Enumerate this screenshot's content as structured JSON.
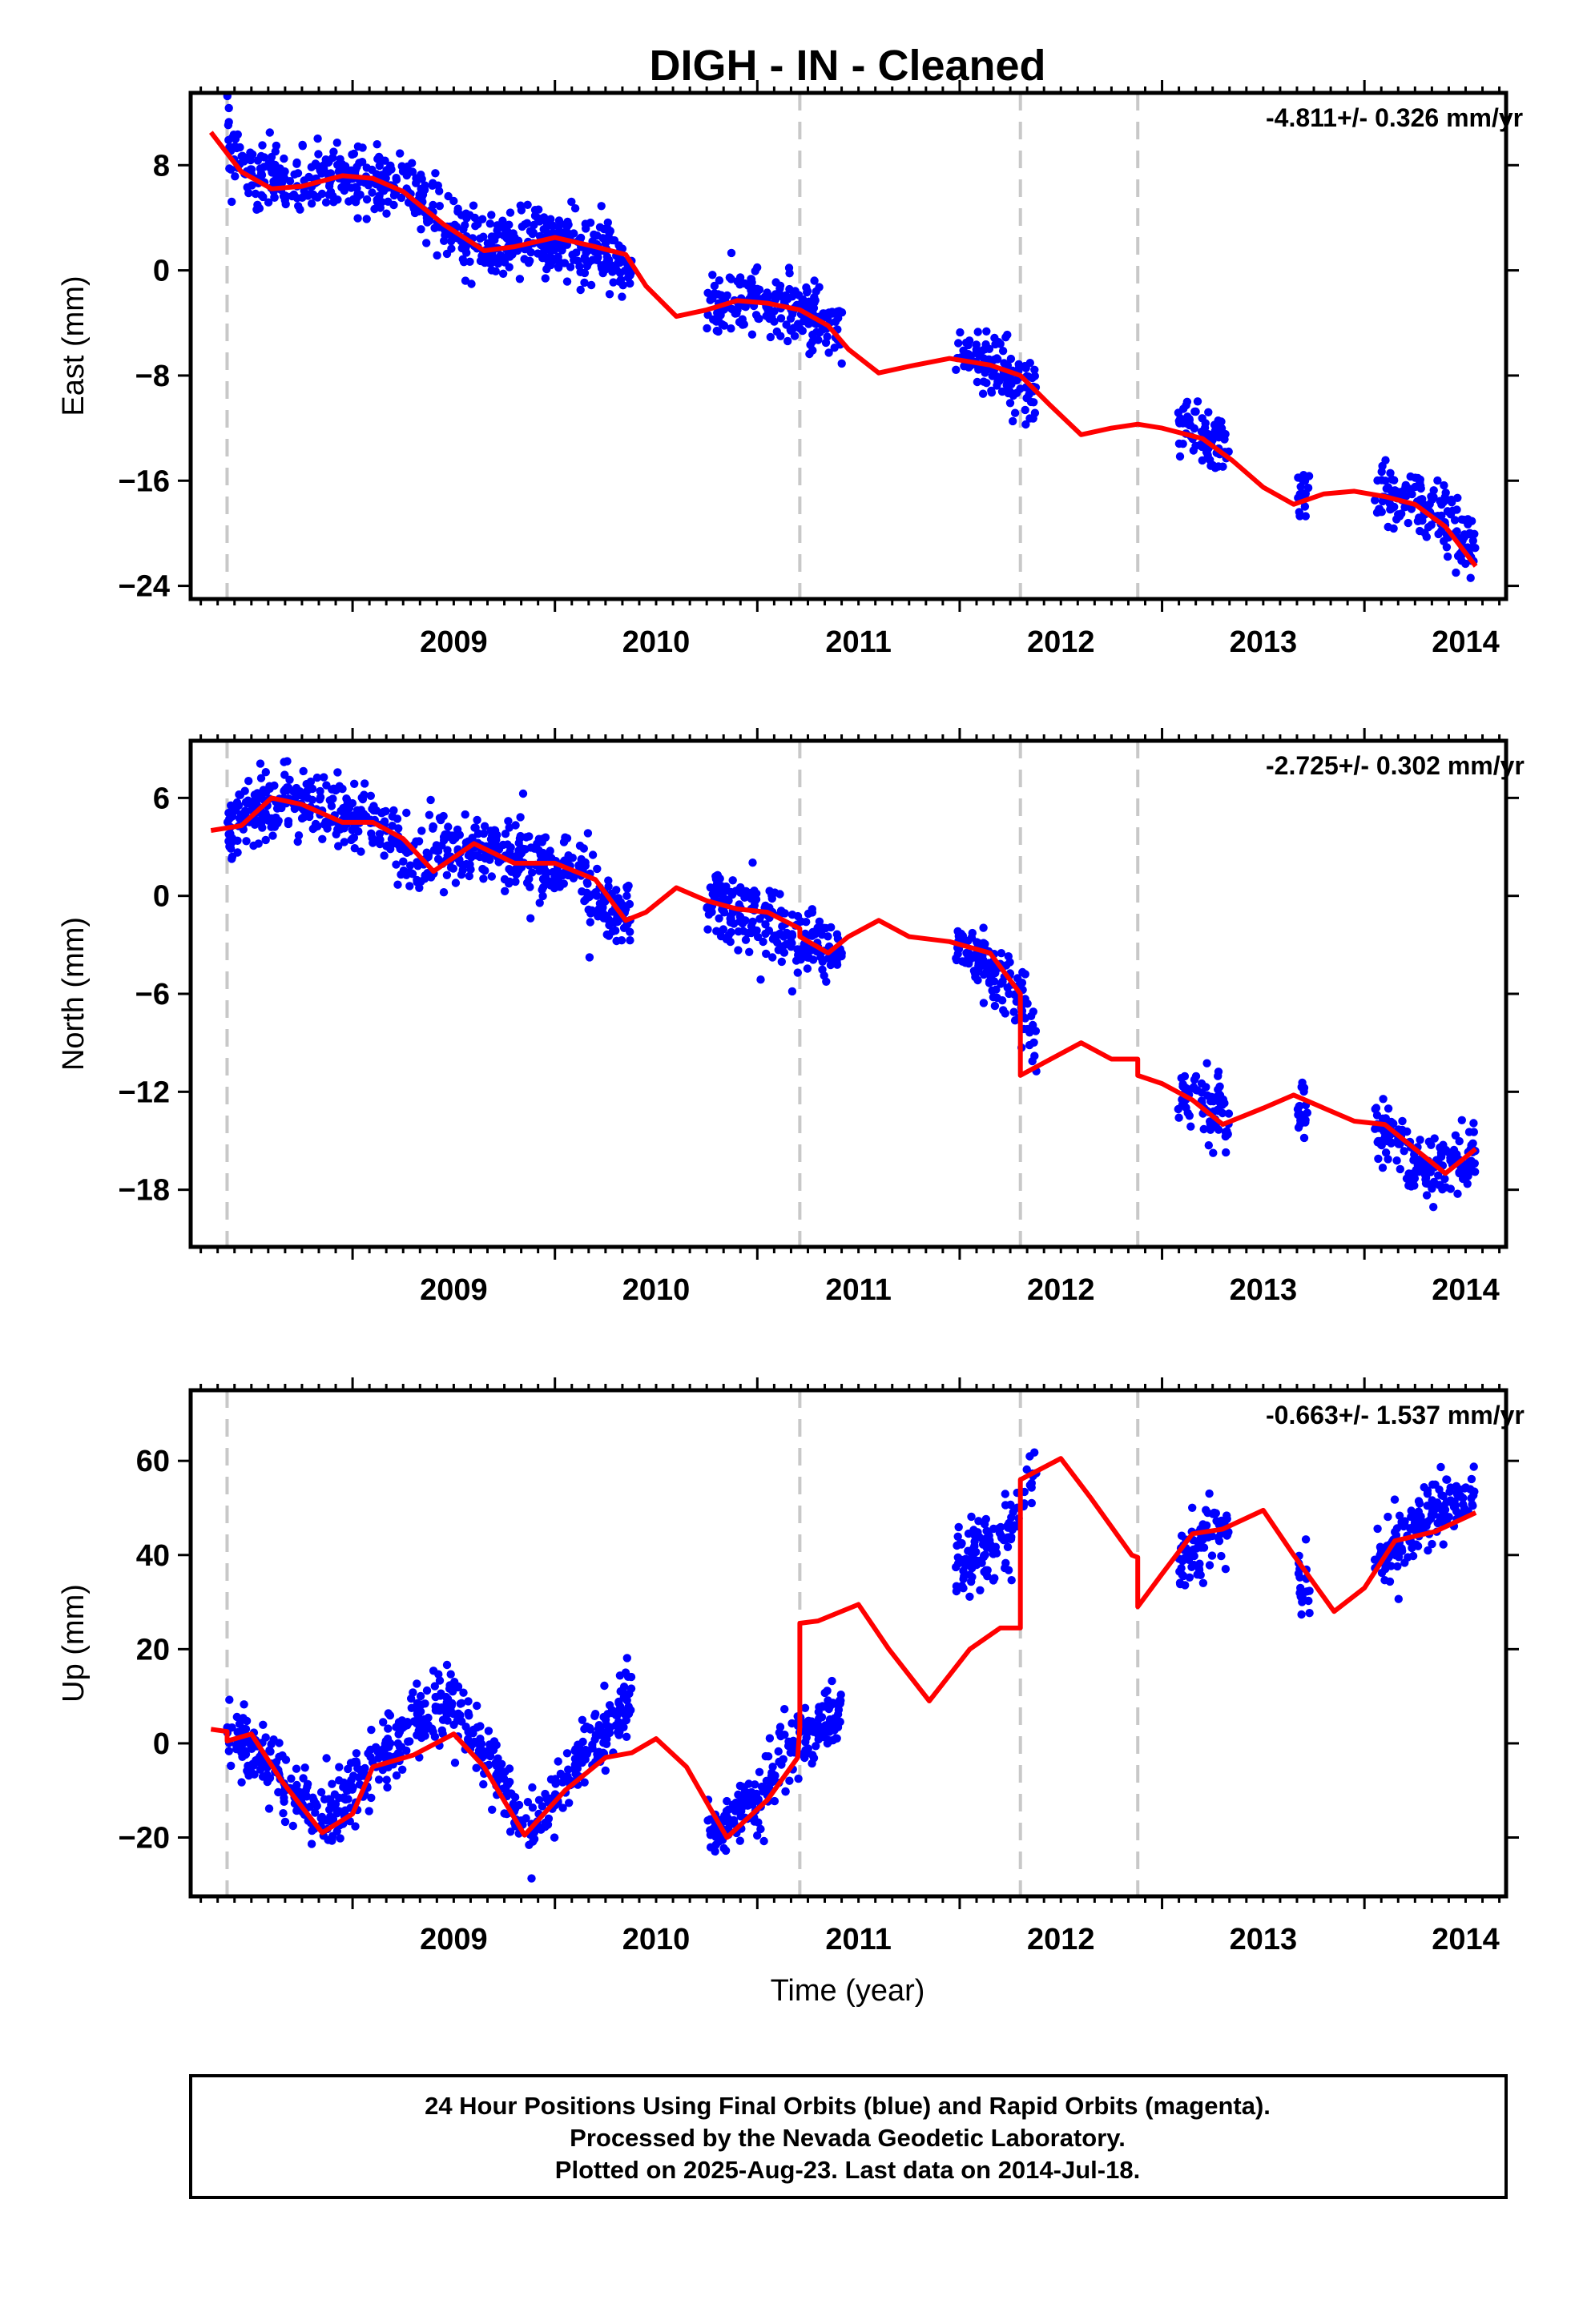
{
  "figure": {
    "title": "DIGH  - IN - Cleaned",
    "xlabel": "Time (year)",
    "footer": [
      "24 Hour Positions Using Final Orbits (blue) and Rapid Orbits (magenta).",
      "Processed by the Nevada Geodetic Laboratory.",
      "Plotted on 2025-Aug-23. Last data on 2014-Jul-18."
    ]
  },
  "colors": {
    "final_orbits": "#0000ff",
    "model": "#ff0000",
    "equipment_change": "#c8c8c8",
    "frame": "#000000"
  },
  "chart_data": [
    {
      "type": "scatter",
      "component": "East",
      "ylabel": "East (mm)",
      "rate": "-4.811+/- 0.326 mm/yr",
      "xlim": [
        2008.2,
        2014.7
      ],
      "ylim": [
        -25,
        13.5
      ],
      "xticks": [
        2009,
        2010,
        2011,
        2012,
        2013,
        2014
      ],
      "yticks": [
        8,
        0,
        -8,
        -16,
        -24
      ],
      "ytick_labels": [
        "8",
        "0",
        "−8",
        "−16",
        "−24"
      ],
      "equipment_changes": [
        2008.38,
        2011.21,
        2012.3,
        2012.88
      ],
      "data_segments": [
        [
          2008.38,
          2010.38
        ],
        [
          2010.75,
          2011.42
        ],
        [
          2011.98,
          2012.38
        ],
        [
          2013.08,
          2013.33
        ],
        [
          2013.67,
          2013.73
        ],
        [
          2014.05,
          2014.55
        ]
      ],
      "series": [
        {
          "name": "Final Orbits",
          "style": "points",
          "x": [
            2008.38,
            2008.5,
            2008.7,
            2008.9,
            2009.1,
            2009.3,
            2009.5,
            2009.7,
            2009.9,
            2010.1,
            2010.3,
            2010.38,
            2010.8,
            2011.0,
            2011.2,
            2011.4,
            2012.0,
            2012.2,
            2012.38,
            2013.1,
            2013.33,
            2013.7,
            2014.1,
            2014.3,
            2014.55
          ],
          "y": [
            10,
            7,
            6.5,
            7,
            6.8,
            6,
            3,
            1.8,
            2.5,
            1.8,
            1.2,
            0,
            -2.5,
            -2.5,
            -3,
            -4.5,
            -6.5,
            -7.5,
            -9,
            -12,
            -14,
            -17,
            -17,
            -18,
            -21
          ],
          "spread": 2.2
        },
        {
          "name": "Model",
          "style": "line",
          "x": [
            2008.3,
            2008.45,
            2008.6,
            2008.75,
            2008.95,
            2009.1,
            2009.25,
            2009.45,
            2009.65,
            2009.8,
            2010.0,
            2010.2,
            2010.35,
            2010.45,
            2010.6,
            2010.75,
            2010.9,
            2011.05,
            2011.21,
            2011.35,
            2011.45,
            2011.6,
            2011.75,
            2011.95,
            2012.15,
            2012.3,
            2012.45,
            2012.6,
            2012.75,
            2012.88,
            2013.0,
            2013.2,
            2013.35,
            2013.5,
            2013.65,
            2013.8,
            2013.95,
            2014.1,
            2014.25,
            2014.4,
            2014.55
          ],
          "y": [
            10.5,
            7.5,
            6.2,
            6.4,
            7.2,
            7.0,
            6.0,
            3.5,
            1.5,
            1.8,
            2.5,
            1.8,
            1.2,
            -1.2,
            -3.5,
            -3.0,
            -2.3,
            -2.5,
            -3.0,
            -4.2,
            -6.0,
            -7.8,
            -7.3,
            -6.7,
            -7.2,
            -8.0,
            -10.3,
            -12.5,
            -12.0,
            -11.7,
            -12.0,
            -12.8,
            -14.5,
            -16.5,
            -17.8,
            -17.0,
            -16.8,
            -17.2,
            -17.8,
            -19.5,
            -22.5
          ]
        }
      ]
    },
    {
      "type": "scatter",
      "component": "North",
      "ylabel": "North (mm)",
      "rate": "-2.725+/- 0.302 mm/yr",
      "xlim": [
        2008.2,
        2014.7
      ],
      "ylim": [
        -21.5,
        9.5
      ],
      "xticks": [
        2009,
        2010,
        2011,
        2012,
        2013,
        2014
      ],
      "yticks": [
        6,
        0,
        -6,
        -12,
        -18
      ],
      "ytick_labels": [
        "6",
        "0",
        "−6",
        "−12",
        "−18"
      ],
      "equipment_changes": [
        2008.38,
        2011.21,
        2012.3,
        2012.88
      ],
      "data_segments": [
        [
          2008.38,
          2010.38
        ],
        [
          2010.75,
          2011.42
        ],
        [
          2011.98,
          2012.38
        ],
        [
          2013.08,
          2013.33
        ],
        [
          2013.67,
          2013.73
        ],
        [
          2014.05,
          2014.55
        ]
      ],
      "series": [
        {
          "name": "Final Orbits",
          "style": "points",
          "x": [
            2008.38,
            2008.55,
            2008.7,
            2008.9,
            2009.1,
            2009.3,
            2009.5,
            2009.7,
            2009.9,
            2010.1,
            2010.3,
            2010.38,
            2010.8,
            2011.0,
            2011.2,
            2011.4,
            2012.0,
            2012.2,
            2012.3,
            2012.38,
            2013.1,
            2013.33,
            2013.7,
            2014.1,
            2014.3,
            2014.55
          ],
          "y": [
            4,
            5.5,
            6,
            5,
            4.5,
            2,
            3,
            3,
            2,
            1.5,
            -1,
            -1,
            -0.5,
            -1.5,
            -2.5,
            -3.5,
            -3,
            -5,
            -6,
            -10.5,
            -12,
            -14,
            -13.5,
            -14.5,
            -17,
            -16
          ],
          "spread": 1.9
        },
        {
          "name": "Model",
          "style": "line",
          "x": [
            2008.3,
            2008.45,
            2008.6,
            2008.75,
            2008.95,
            2009.1,
            2009.25,
            2009.4,
            2009.6,
            2009.8,
            2010.0,
            2010.2,
            2010.35,
            2010.45,
            2010.6,
            2010.75,
            2010.9,
            2011.05,
            2011.21,
            2011.21,
            2011.35,
            2011.45,
            2011.6,
            2011.75,
            2011.95,
            2012.15,
            2012.3,
            2012.3,
            2012.45,
            2012.6,
            2012.75,
            2012.88,
            2012.88,
            2013.0,
            2013.15,
            2013.3,
            2013.5,
            2013.65,
            2013.8,
            2013.95,
            2014.1,
            2014.25,
            2014.4,
            2014.55
          ],
          "y": [
            4.0,
            4.3,
            6.0,
            5.6,
            4.5,
            4.5,
            3.5,
            1.5,
            3.2,
            2.0,
            2.0,
            1.0,
            -1.5,
            -1.0,
            0.5,
            -0.3,
            -0.8,
            -1.0,
            -2.0,
            -2.5,
            -3.5,
            -2.5,
            -1.5,
            -2.5,
            -2.8,
            -3.5,
            -6.0,
            -11.0,
            -10.0,
            -9.0,
            -10.0,
            -10.0,
            -11.0,
            -11.5,
            -12.5,
            -14.0,
            -13.0,
            -12.2,
            -13.0,
            -13.8,
            -14.0,
            -15.5,
            -17.0,
            -15.5
          ]
        }
      ]
    },
    {
      "type": "scatter",
      "component": "Up",
      "ylabel": "Up (mm)",
      "rate": "-0.663+/- 1.537 mm/yr",
      "xlim": [
        2008.2,
        2014.7
      ],
      "ylim": [
        -32.5,
        75
      ],
      "xticks": [
        2009,
        2010,
        2011,
        2012,
        2013,
        2014
      ],
      "yticks": [
        60,
        40,
        20,
        0,
        -20
      ],
      "ytick_labels": [
        "60",
        "40",
        "20",
        "0",
        "−20"
      ],
      "equipment_changes": [
        2008.38,
        2011.21,
        2012.3,
        2012.88
      ],
      "data_segments": [
        [
          2008.38,
          2010.38
        ],
        [
          2010.75,
          2011.42
        ],
        [
          2011.98,
          2012.38
        ],
        [
          2013.08,
          2013.33
        ],
        [
          2013.67,
          2013.73
        ],
        [
          2014.05,
          2014.55
        ]
      ],
      "series": [
        {
          "name": "Final Orbits",
          "style": "points",
          "x": [
            2008.38,
            2008.6,
            2008.85,
            2009.1,
            2009.3,
            2009.5,
            2009.7,
            2009.85,
            2010.1,
            2010.3,
            2010.38,
            2010.8,
            2011.0,
            2011.2,
            2011.4,
            2012.0,
            2012.2,
            2012.3,
            2012.38,
            2013.1,
            2013.33,
            2013.7,
            2014.1,
            2014.3,
            2014.55
          ],
          "y": [
            3,
            -5,
            -18,
            -5,
            5,
            8,
            -5,
            -19,
            -5,
            5,
            10,
            -20,
            -12,
            0,
            5,
            40,
            42,
            50,
            58,
            40,
            47,
            33,
            40,
            48,
            55
          ],
          "spread": 6.5
        },
        {
          "name": "Model",
          "style": "line",
          "x": [
            2008.3,
            2008.38,
            2008.38,
            2008.5,
            2008.65,
            2008.85,
            2009.0,
            2009.1,
            2009.3,
            2009.5,
            2009.65,
            2009.85,
            2010.05,
            2010.25,
            2010.38,
            2010.5,
            2010.65,
            2010.85,
            2011.05,
            2011.2,
            2011.21,
            2011.21,
            2011.3,
            2011.5,
            2011.65,
            2011.85,
            2012.05,
            2012.2,
            2012.3,
            2012.3,
            2012.5,
            2012.65,
            2012.85,
            2012.88,
            2012.88,
            2013.0,
            2013.15,
            2013.3,
            2013.5,
            2013.65,
            2013.85,
            2014.0,
            2014.15,
            2014.35,
            2014.55
          ],
          "y": [
            3,
            2.5,
            0.5,
            2.0,
            -8.0,
            -19.0,
            -15.0,
            -5.0,
            -2.5,
            2.0,
            -5.0,
            -19.5,
            -10.0,
            -3.0,
            -2.0,
            1.0,
            -5.0,
            -20.0,
            -12.0,
            -3.0,
            3.5,
            25.5,
            26.0,
            29.5,
            20.0,
            9.0,
            20.0,
            24.5,
            24.5,
            56.0,
            60.5,
            52.0,
            40.0,
            39.5,
            29.0,
            36.0,
            44.5,
            45.5,
            49.5,
            40.0,
            28.0,
            33.0,
            43.0,
            45.0,
            49.0
          ]
        }
      ]
    }
  ]
}
